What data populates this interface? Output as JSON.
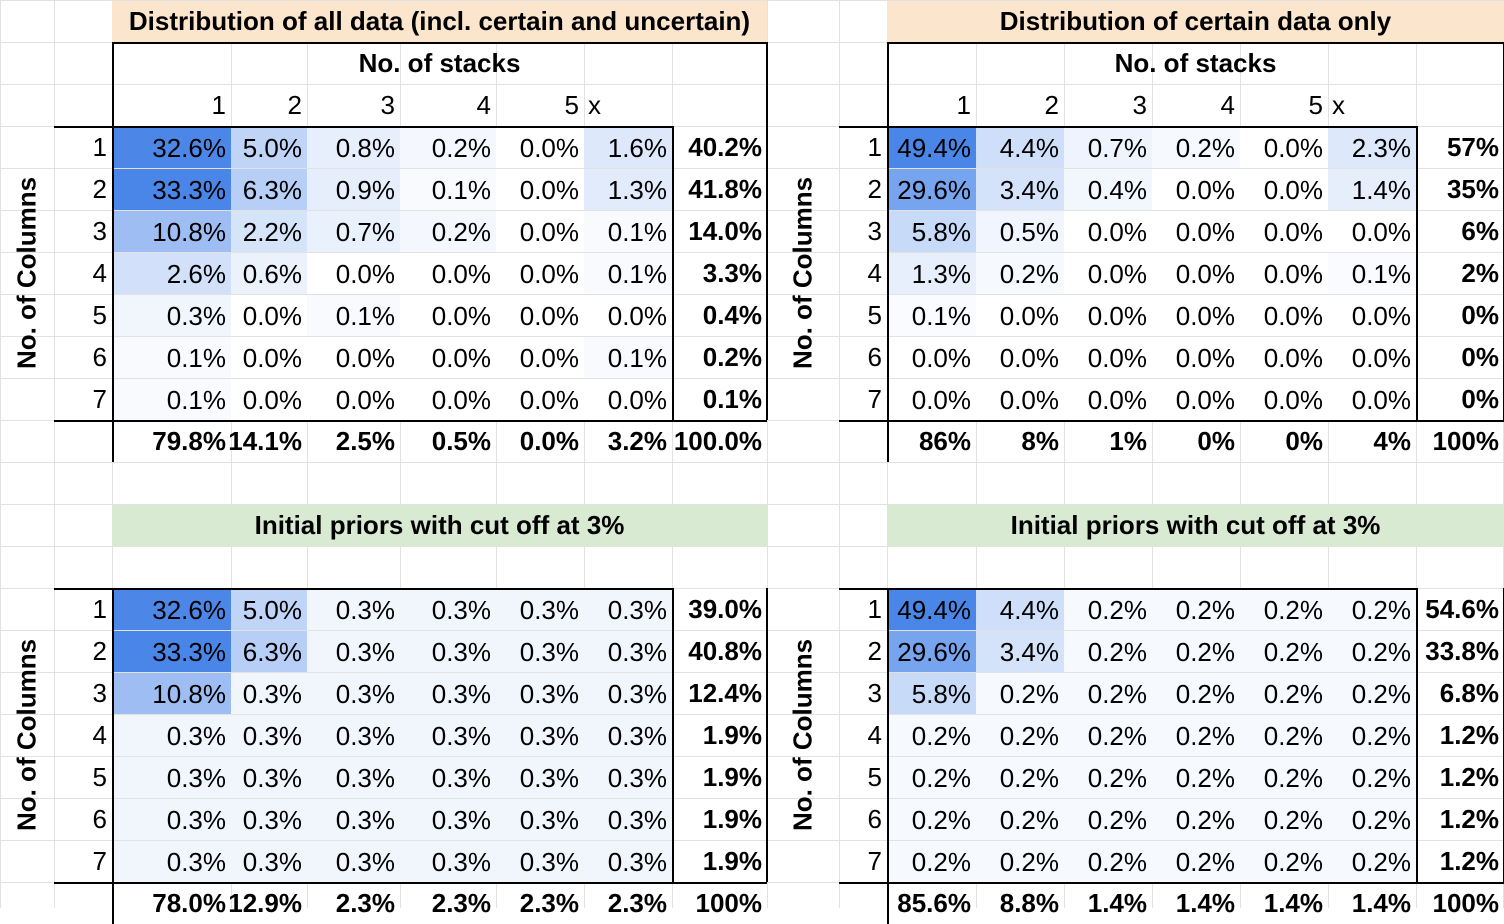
{
  "panels": [
    {
      "id": "top-left",
      "title": "Distribution of all data (incl. certain and uncertain)",
      "title_bg": "#fce5cd",
      "stack_header": "No. of stacks",
      "col_headers": [
        "1",
        "2",
        "3",
        "4",
        "5",
        "x",
        ""
      ],
      "row_axis_label": "No. of Columns",
      "row_labels": [
        "1",
        "2",
        "3",
        "4",
        "5",
        "6",
        "7"
      ],
      "cells": [
        [
          "32.6%",
          "5.0%",
          "0.8%",
          "0.2%",
          "0.0%",
          "1.6%"
        ],
        [
          "33.3%",
          "6.3%",
          "0.9%",
          "0.1%",
          "0.0%",
          "1.3%"
        ],
        [
          "10.8%",
          "2.2%",
          "0.7%",
          "0.2%",
          "0.0%",
          "0.1%"
        ],
        [
          "2.6%",
          "0.6%",
          "0.0%",
          "0.0%",
          "0.0%",
          "0.1%"
        ],
        [
          "0.3%",
          "0.0%",
          "0.1%",
          "0.0%",
          "0.0%",
          "0.0%"
        ],
        [
          "0.1%",
          "0.0%",
          "0.0%",
          "0.0%",
          "0.0%",
          "0.1%"
        ],
        [
          "0.1%",
          "0.0%",
          "0.0%",
          "0.0%",
          "0.0%",
          "0.0%"
        ]
      ],
      "row_totals": [
        "40.2%",
        "41.8%",
        "14.0%",
        "3.3%",
        "0.4%",
        "0.2%",
        "0.1%"
      ],
      "col_totals": [
        "79.8%",
        "14.1%",
        "2.5%",
        "0.5%",
        "0.0%",
        "3.2%",
        "100.0%"
      ]
    },
    {
      "id": "top-right",
      "title": "Distribution of certain data only",
      "title_bg": "#fce5cd",
      "stack_header": "No. of stacks",
      "col_headers": [
        "1",
        "2",
        "3",
        "4",
        "5",
        "x",
        ""
      ],
      "row_axis_label": "No. of Columns",
      "row_labels": [
        "1",
        "2",
        "3",
        "4",
        "5",
        "6",
        "7"
      ],
      "cells": [
        [
          "49.4%",
          "4.4%",
          "0.7%",
          "0.2%",
          "0.0%",
          "2.3%"
        ],
        [
          "29.6%",
          "3.4%",
          "0.4%",
          "0.0%",
          "0.0%",
          "1.4%"
        ],
        [
          "5.8%",
          "0.5%",
          "0.0%",
          "0.0%",
          "0.0%",
          "0.0%"
        ],
        [
          "1.3%",
          "0.2%",
          "0.0%",
          "0.0%",
          "0.0%",
          "0.1%"
        ],
        [
          "0.1%",
          "0.0%",
          "0.0%",
          "0.0%",
          "0.0%",
          "0.0%"
        ],
        [
          "0.0%",
          "0.0%",
          "0.0%",
          "0.0%",
          "0.0%",
          "0.0%"
        ],
        [
          "0.0%",
          "0.0%",
          "0.0%",
          "0.0%",
          "0.0%",
          "0.0%"
        ]
      ],
      "row_totals": [
        "57%",
        "35%",
        "6%",
        "2%",
        "0%",
        "0%",
        "0%"
      ],
      "col_totals": [
        "86%",
        "8%",
        "1%",
        "0%",
        "0%",
        "4%",
        "100%"
      ]
    },
    {
      "id": "bottom-left",
      "title": "Initial priors with cut off at 3%",
      "title_bg": "#d9ead3",
      "row_axis_label": "No. of Columns",
      "row_labels": [
        "1",
        "2",
        "3",
        "4",
        "5",
        "6",
        "7"
      ],
      "cells": [
        [
          "32.6%",
          "5.0%",
          "0.3%",
          "0.3%",
          "0.3%",
          "0.3%"
        ],
        [
          "33.3%",
          "6.3%",
          "0.3%",
          "0.3%",
          "0.3%",
          "0.3%"
        ],
        [
          "10.8%",
          "0.3%",
          "0.3%",
          "0.3%",
          "0.3%",
          "0.3%"
        ],
        [
          "0.3%",
          "0.3%",
          "0.3%",
          "0.3%",
          "0.3%",
          "0.3%"
        ],
        [
          "0.3%",
          "0.3%",
          "0.3%",
          "0.3%",
          "0.3%",
          "0.3%"
        ],
        [
          "0.3%",
          "0.3%",
          "0.3%",
          "0.3%",
          "0.3%",
          "0.3%"
        ],
        [
          "0.3%",
          "0.3%",
          "0.3%",
          "0.3%",
          "0.3%",
          "0.3%"
        ]
      ],
      "row_totals": [
        "39.0%",
        "40.8%",
        "12.4%",
        "1.9%",
        "1.9%",
        "1.9%",
        "1.9%"
      ],
      "col_totals": [
        "78.0%",
        "12.9%",
        "2.3%",
        "2.3%",
        "2.3%",
        "2.3%",
        "100%"
      ]
    },
    {
      "id": "bottom-right",
      "title": "Initial priors with cut off at 3%",
      "title_bg": "#d9ead3",
      "row_axis_label": "No. of Columns",
      "row_labels": [
        "1",
        "2",
        "3",
        "4",
        "5",
        "6",
        "7"
      ],
      "cells": [
        [
          "49.4%",
          "4.4%",
          "0.2%",
          "0.2%",
          "0.2%",
          "0.2%"
        ],
        [
          "29.6%",
          "3.4%",
          "0.2%",
          "0.2%",
          "0.2%",
          "0.2%"
        ],
        [
          "5.8%",
          "0.2%",
          "0.2%",
          "0.2%",
          "0.2%",
          "0.2%"
        ],
        [
          "0.2%",
          "0.2%",
          "0.2%",
          "0.2%",
          "0.2%",
          "0.2%"
        ],
        [
          "0.2%",
          "0.2%",
          "0.2%",
          "0.2%",
          "0.2%",
          "0.2%"
        ],
        [
          "0.2%",
          "0.2%",
          "0.2%",
          "0.2%",
          "0.2%",
          "0.2%"
        ],
        [
          "0.2%",
          "0.2%",
          "0.2%",
          "0.2%",
          "0.2%",
          "0.2%"
        ]
      ],
      "row_totals": [
        "54.6%",
        "33.8%",
        "6.8%",
        "1.2%",
        "1.2%",
        "1.2%",
        "1.2%"
      ],
      "col_totals": [
        "85.6%",
        "8.8%",
        "1.4%",
        "1.4%",
        "1.4%",
        "1.4%",
        "100%"
      ]
    }
  ],
  "colors": {
    "heat_max": "#4a86e8",
    "heat_min": "#ffffff",
    "gridline": "#e2e2e2",
    "border": "#000000"
  }
}
